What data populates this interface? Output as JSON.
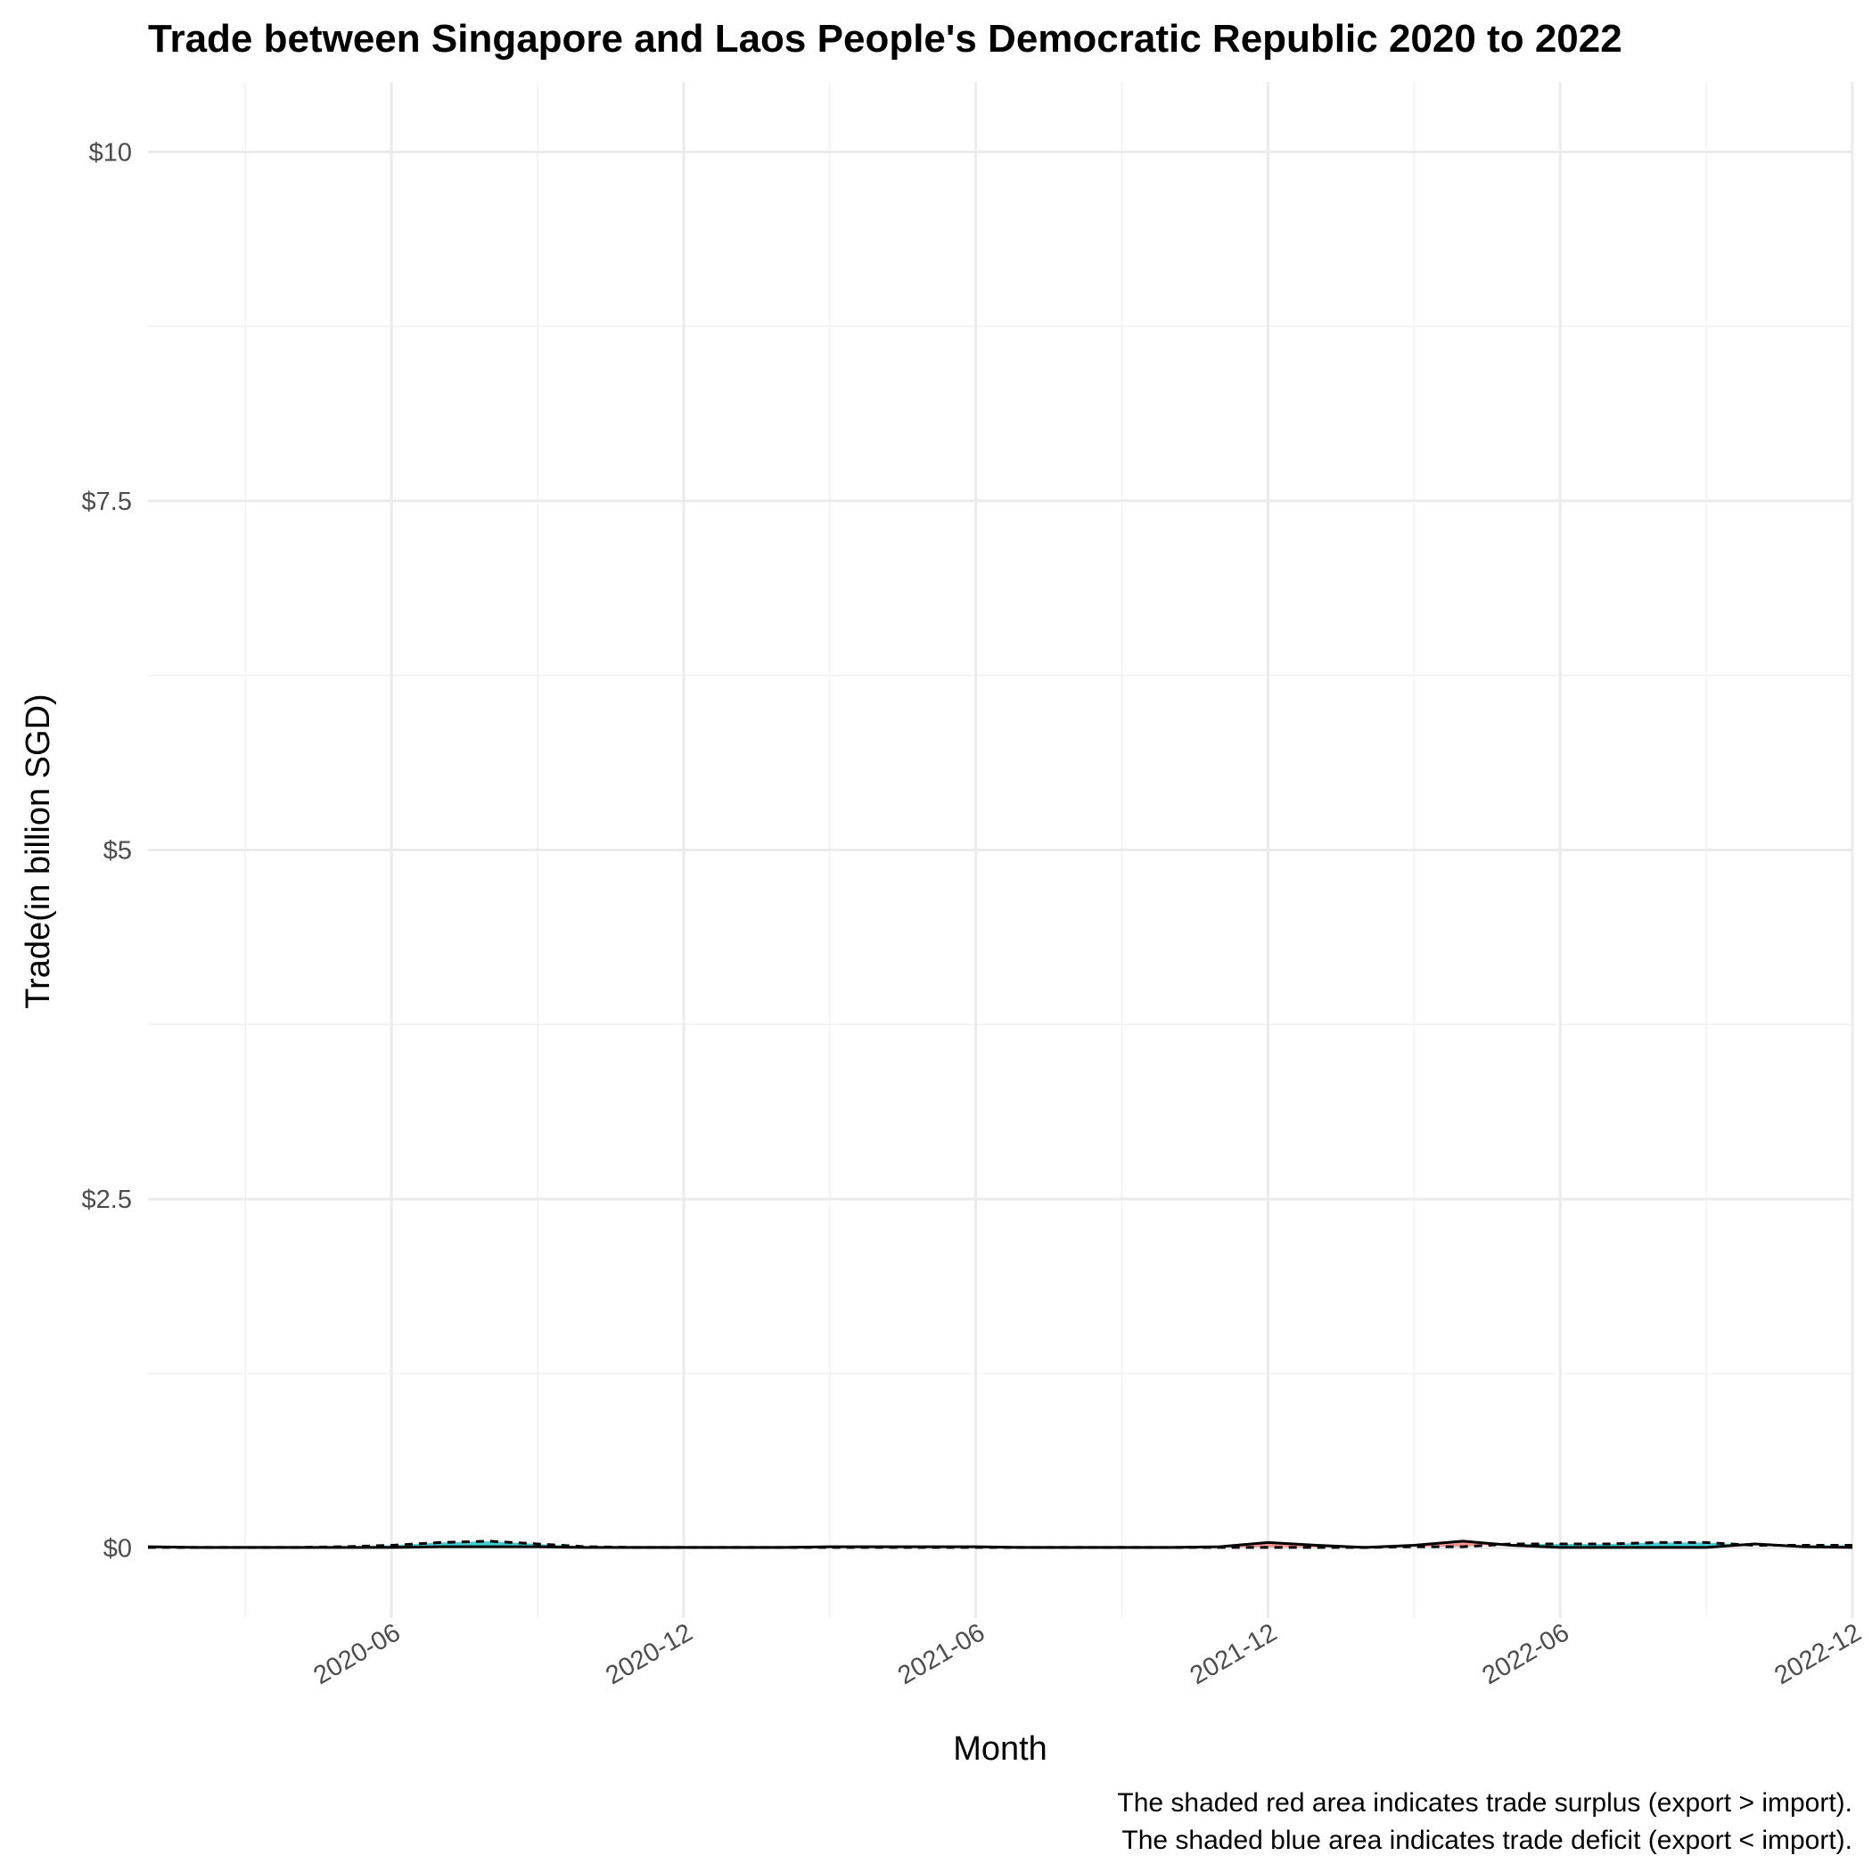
{
  "chart_data": {
    "type": "area",
    "title": "Trade between Singapore and Laos People's Democratic Republic  2020 to 2022",
    "xlabel": "Month",
    "ylabel": "Trade(in billion SGD)",
    "y_ticks": [
      {
        "value": 0,
        "label": "$0"
      },
      {
        "value": 2.5,
        "label": "$2.5"
      },
      {
        "value": 5,
        "label": "$5"
      },
      {
        "value": 7.5,
        "label": "$7.5"
      },
      {
        "value": 10,
        "label": "$10"
      }
    ],
    "x_ticks": [
      "2020-06",
      "2020-12",
      "2021-06",
      "2021-12",
      "2022-06",
      "2022-12"
    ],
    "ylim": [
      -0.5,
      10.5
    ],
    "xlim": [
      "2020-01",
      "2022-12"
    ],
    "grid": true,
    "legend": "none",
    "colors": {
      "surplus": "#f8766d",
      "deficit": "#00bfc4",
      "export_line": "#000000",
      "import_line": "#000000"
    },
    "x": [
      "2020-01",
      "2020-02",
      "2020-03",
      "2020-04",
      "2020-05",
      "2020-06",
      "2020-07",
      "2020-08",
      "2020-09",
      "2020-10",
      "2020-11",
      "2020-12",
      "2021-01",
      "2021-02",
      "2021-03",
      "2021-04",
      "2021-05",
      "2021-06",
      "2021-07",
      "2021-08",
      "2021-09",
      "2021-10",
      "2021-11",
      "2021-12",
      "2022-01",
      "2022-02",
      "2022-03",
      "2022-04",
      "2022-05",
      "2022-06",
      "2022-07",
      "2022-08",
      "2022-09",
      "2022-10",
      "2022-11",
      "2022-12"
    ],
    "series": [
      {
        "line_style": "solid",
        "values": [
          0.01,
          0.005,
          0.005,
          0.005,
          0.005,
          0.005,
          0.01,
          0.01,
          0.01,
          0.005,
          0.005,
          0.005,
          0.005,
          0.005,
          0.01,
          0.01,
          0.01,
          0.01,
          0.005,
          0.005,
          0.005,
          0.005,
          0.01,
          0.04,
          0.02,
          0.005,
          0.02,
          0.05,
          0.02,
          0.005,
          0.005,
          0.005,
          0.005,
          0.03,
          0.01,
          0.005
        ]
      },
      {
        "line_style": "dashed",
        "values": [
          0.005,
          0.005,
          0.005,
          0.005,
          0.01,
          0.02,
          0.04,
          0.05,
          0.03,
          0.01,
          0.005,
          0.005,
          0.005,
          0.005,
          0.005,
          0.005,
          0.005,
          0.005,
          0.005,
          0.005,
          0.005,
          0.005,
          0.005,
          0.005,
          0.005,
          0.005,
          0.01,
          0.01,
          0.03,
          0.03,
          0.03,
          0.04,
          0.04,
          0.02,
          0.02,
          0.02
        ]
      }
    ],
    "caption": [
      "The shaded red area indicates trade surplus (export > import).",
      "The shaded blue area indicates trade deficit (export < import)."
    ]
  }
}
